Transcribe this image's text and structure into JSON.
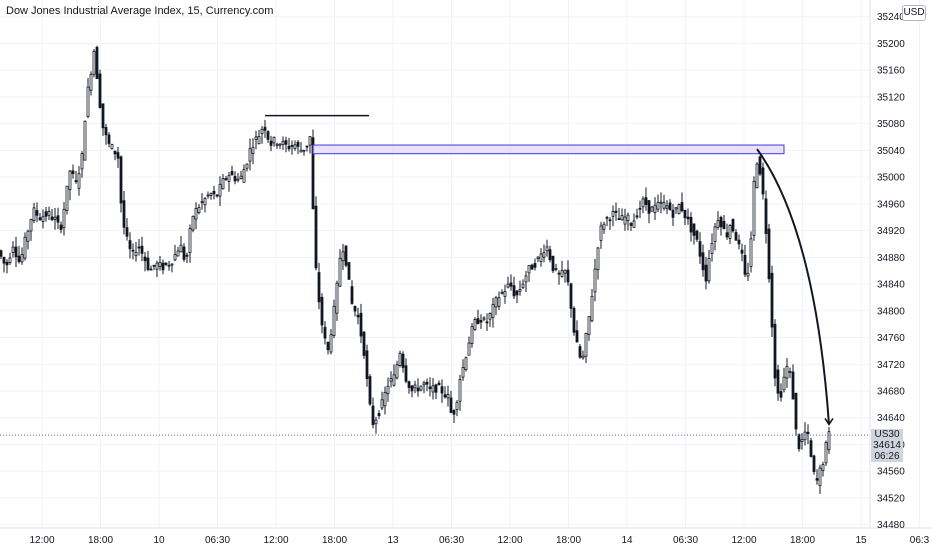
{
  "header": {
    "title": "Dow Jones Industrial Average Index, 15, Currency.com",
    "currency_label": "USD"
  },
  "price_label": {
    "symbol": "US30",
    "price": "34614",
    "countdown": "06:26"
  },
  "colors": {
    "candle": "#131722",
    "zone_fill": "#e6dcf7",
    "zone_border": "#3c3cdc",
    "last_price_line": "#6a5acd"
  },
  "chart_data": {
    "type": "candlestick",
    "title": "Dow Jones Industrial Average Index, 15, Currency.com",
    "ylim": [
      34475,
      35265
    ],
    "y_ticks": [
      34480,
      34520,
      34560,
      34600,
      34640,
      34680,
      34720,
      34760,
      34800,
      34840,
      34880,
      34920,
      34960,
      35000,
      35040,
      35080,
      35120,
      35160,
      35200,
      35240
    ],
    "x_ticks": [
      "12:00",
      "18:00",
      "10",
      "06:30",
      "12:00",
      "18:00",
      "13",
      "06:30",
      "12:00",
      "18:00",
      "14",
      "06:30",
      "12:00",
      "18:00",
      "15",
      "06:3"
    ],
    "last_price": 34614,
    "price_path": [
      [
        0,
        34890
      ],
      [
        8,
        34865
      ],
      [
        15,
        34900
      ],
      [
        22,
        34870
      ],
      [
        28,
        34910
      ],
      [
        35,
        34950
      ],
      [
        42,
        34940
      ],
      [
        50,
        34945
      ],
      [
        58,
        34935
      ],
      [
        62,
        34920
      ],
      [
        68,
        34970
      ],
      [
        72,
        35010
      ],
      [
        78,
        34990
      ],
      [
        84,
        35030
      ],
      [
        88,
        35110
      ],
      [
        92,
        35150
      ],
      [
        96,
        35190
      ],
      [
        100,
        35140
      ],
      [
        104,
        35080
      ],
      [
        110,
        35050
      ],
      [
        116,
        35040
      ],
      [
        120,
        35030
      ],
      [
        124,
        34940
      ],
      [
        128,
        34910
      ],
      [
        134,
        34880
      ],
      [
        140,
        34900
      ],
      [
        146,
        34880
      ],
      [
        152,
        34860
      ],
      [
        158,
        34870
      ],
      [
        164,
        34865
      ],
      [
        170,
        34870
      ],
      [
        176,
        34880
      ],
      [
        182,
        34900
      ],
      [
        188,
        34870
      ],
      [
        194,
        34940
      ],
      [
        200,
        34955
      ],
      [
        206,
        34965
      ],
      [
        212,
        34975
      ],
      [
        218,
        34970
      ],
      [
        224,
        34990
      ],
      [
        230,
        35005
      ],
      [
        236,
        35000
      ],
      [
        242,
        34995
      ],
      [
        248,
        35020
      ],
      [
        254,
        35050
      ],
      [
        260,
        35060
      ],
      [
        266,
        35080
      ],
      [
        272,
        35050
      ],
      [
        278,
        35055
      ],
      [
        284,
        35050
      ],
      [
        290,
        35045
      ],
      [
        296,
        35050
      ],
      [
        302,
        35040
      ],
      [
        308,
        35045
      ],
      [
        312,
        35060
      ],
      [
        315,
        34950
      ],
      [
        318,
        34860
      ],
      [
        322,
        34800
      ],
      [
        326,
        34760
      ],
      [
        330,
        34740
      ],
      [
        334,
        34780
      ],
      [
        338,
        34820
      ],
      [
        342,
        34880
      ],
      [
        346,
        34900
      ],
      [
        350,
        34850
      ],
      [
        354,
        34810
      ],
      [
        360,
        34790
      ],
      [
        366,
        34740
      ],
      [
        370,
        34680
      ],
      [
        374,
        34630
      ],
      [
        378,
        34640
      ],
      [
        384,
        34660
      ],
      [
        390,
        34690
      ],
      [
        396,
        34700
      ],
      [
        402,
        34740
      ],
      [
        408,
        34700
      ],
      [
        414,
        34680
      ],
      [
        420,
        34685
      ],
      [
        426,
        34690
      ],
      [
        432,
        34680
      ],
      [
        438,
        34685
      ],
      [
        444,
        34680
      ],
      [
        450,
        34670
      ],
      [
        454,
        34640
      ],
      [
        458,
        34660
      ],
      [
        462,
        34700
      ],
      [
        466,
        34720
      ],
      [
        470,
        34750
      ],
      [
        476,
        34780
      ],
      [
        482,
        34790
      ],
      [
        488,
        34780
      ],
      [
        494,
        34800
      ],
      [
        500,
        34820
      ],
      [
        506,
        34830
      ],
      [
        512,
        34840
      ],
      [
        518,
        34820
      ],
      [
        524,
        34840
      ],
      [
        530,
        34860
      ],
      [
        536,
        34870
      ],
      [
        542,
        34880
      ],
      [
        548,
        34900
      ],
      [
        552,
        34880
      ],
      [
        556,
        34860
      ],
      [
        562,
        34850
      ],
      [
        568,
        34860
      ],
      [
        572,
        34820
      ],
      [
        576,
        34770
      ],
      [
        580,
        34740
      ],
      [
        584,
        34720
      ],
      [
        588,
        34760
      ],
      [
        592,
        34800
      ],
      [
        596,
        34850
      ],
      [
        600,
        34900
      ],
      [
        604,
        34930
      ],
      [
        610,
        34940
      ],
      [
        616,
        34945
      ],
      [
        622,
        34935
      ],
      [
        628,
        34940
      ],
      [
        634,
        34930
      ],
      [
        640,
        34950
      ],
      [
        646,
        34965
      ],
      [
        652,
        34950
      ],
      [
        658,
        34955
      ],
      [
        664,
        34960
      ],
      [
        670,
        34955
      ],
      [
        676,
        34945
      ],
      [
        682,
        34960
      ],
      [
        688,
        34940
      ],
      [
        694,
        34920
      ],
      [
        700,
        34900
      ],
      [
        704,
        34870
      ],
      [
        708,
        34850
      ],
      [
        712,
        34890
      ],
      [
        716,
        34920
      ],
      [
        720,
        34940
      ],
      [
        724,
        34930
      ],
      [
        728,
        34910
      ],
      [
        732,
        34930
      ],
      [
        736,
        34920
      ],
      [
        740,
        34900
      ],
      [
        744,
        34880
      ],
      [
        748,
        34840
      ],
      [
        752,
        34880
      ],
      [
        755,
        34970
      ],
      [
        758,
        35030
      ],
      [
        762,
        35010
      ],
      [
        766,
        34960
      ],
      [
        770,
        34880
      ],
      [
        774,
        34780
      ],
      [
        778,
        34680
      ],
      [
        782,
        34670
      ],
      [
        786,
        34700
      ],
      [
        790,
        34720
      ],
      [
        794,
        34690
      ],
      [
        798,
        34620
      ],
      [
        802,
        34590
      ],
      [
        806,
        34620
      ],
      [
        810,
        34610
      ],
      [
        814,
        34570
      ],
      [
        818,
        34540
      ],
      [
        822,
        34560
      ],
      [
        826,
        34580
      ],
      [
        830,
        34614
      ]
    ],
    "annotations": {
      "supply_zone": {
        "x_start": 313,
        "x_end": 784,
        "y_low": 35035,
        "y_high": 35048
      },
      "swing_high_line": {
        "x_start": 265,
        "x_end": 369,
        "y": 35092
      },
      "projection_arrow": {
        "x_start": 757,
        "y_start": 35042,
        "x_end": 829,
        "y_end": 34630
      }
    }
  }
}
